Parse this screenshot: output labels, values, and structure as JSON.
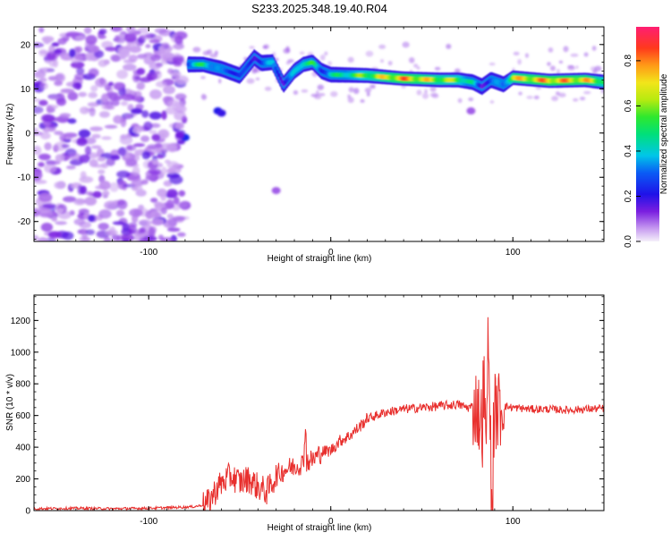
{
  "title": "S233.2025.348.19.40.R04",
  "chart_data": [
    {
      "type": "heatmap",
      "name": "spectrogram",
      "xlabel": "Height of straight line (km)",
      "ylabel": "Frequency (Hz)",
      "xlim": [
        -163,
        150
      ],
      "ylim": [
        -24.5,
        24
      ],
      "xticks": [
        -100,
        0,
        100
      ],
      "yticks": [
        -20,
        -10,
        0,
        10,
        20
      ],
      "colorbar": {
        "label": "Normalized spectral amplitude",
        "range": [
          0,
          0.95
        ],
        "ticks": [
          0.0,
          0.2,
          0.4,
          0.6,
          0.8
        ]
      },
      "ridge": {
        "x": [
          -78,
          -70,
          -60,
          -50,
          -42,
          -38,
          -32,
          -26,
          -20,
          -15,
          -10,
          -5,
          0,
          20,
          40,
          60,
          70,
          78,
          83,
          88,
          95,
          100,
          120,
          140,
          150
        ],
        "freq": [
          15.5,
          15.5,
          14.5,
          13.0,
          17.0,
          15.8,
          16.0,
          11.0,
          14.0,
          15.5,
          16.0,
          14.0,
          13.2,
          13.0,
          12.3,
          12.0,
          12.0,
          11.5,
          10.5,
          12.0,
          11.0,
          12.5,
          11.8,
          12.0,
          11.5
        ],
        "amp": [
          0.4,
          0.6,
          0.35,
          0.3,
          0.25,
          0.3,
          0.45,
          0.2,
          0.45,
          0.6,
          0.6,
          0.3,
          0.5,
          0.7,
          0.9,
          0.75,
          0.7,
          0.5,
          0.2,
          0.35,
          0.4,
          0.8,
          0.9,
          0.85,
          0.7
        ]
      }
    },
    {
      "type": "line",
      "name": "snr",
      "xlabel": "Height of straight line (km)",
      "ylabel": "SNR (10 * v/v)",
      "xlim": [
        -163,
        150
      ],
      "ylim": [
        0,
        1360
      ],
      "xticks": [
        -100,
        0,
        100
      ],
      "yticks": [
        0,
        200,
        400,
        600,
        800,
        1000,
        1200
      ],
      "color": "#e8302e",
      "series": [
        {
          "name": "SNR",
          "x": [
            -163,
            -140,
            -120,
            -100,
            -85,
            -75,
            -68,
            -62,
            -55,
            -50,
            -45,
            -40,
            -35,
            -30,
            -25,
            -20,
            -15,
            -10,
            -5,
            0,
            5,
            10,
            15,
            20,
            25,
            30,
            40,
            50,
            60,
            70,
            75,
            80,
            84,
            86,
            88,
            90,
            95,
            100,
            110,
            120,
            130,
            140,
            150
          ],
          "values": [
            12,
            15,
            12,
            15,
            20,
            25,
            40,
            150,
            220,
            180,
            200,
            150,
            120,
            220,
            260,
            280,
            300,
            320,
            370,
            380,
            440,
            470,
            520,
            580,
            600,
            620,
            640,
            650,
            660,
            670,
            650,
            660,
            500,
            560,
            400,
            620,
            660,
            650,
            640,
            640,
            635,
            640,
            645
          ]
        }
      ]
    }
  ]
}
